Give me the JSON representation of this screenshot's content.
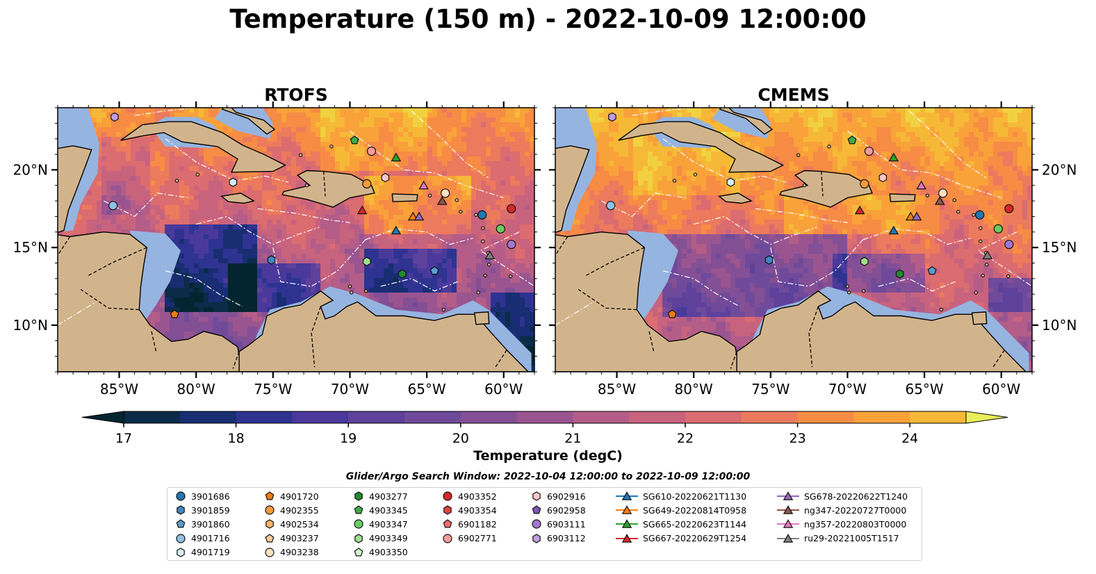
{
  "title": "Temperature (150 m) - 2022-10-09 12:00:00",
  "colorbar": {
    "label": "Temperature (degC)",
    "ticks": [
      17,
      18,
      19,
      20,
      21,
      22,
      23,
      24
    ],
    "min": 16.75,
    "max": 24.75,
    "step": 0.5,
    "extend": "both",
    "colors": [
      "#03252f",
      "#0b2b49",
      "#182d72",
      "#2e3391",
      "#4a399b",
      "#5d419b",
      "#6f4a9a",
      "#834f95",
      "#9a5590",
      "#b35d88",
      "#c8637e",
      "#db6c70",
      "#ec7a5d",
      "#f78c45",
      "#f9a23a",
      "#f6b937",
      "#f2d140",
      "#e8ef58"
    ],
    "extend_low_color": "#03252f",
    "extend_high_color": "#e8ef58"
  },
  "chart_data": [
    {
      "type": "heatmap",
      "title": "RTOFS",
      "xlim": [
        -89,
        -58
      ],
      "ylim": [
        7,
        24
      ],
      "xticks": [
        -85,
        -80,
        -75,
        -70,
        -65,
        -60
      ],
      "yticks": [
        10,
        15,
        20
      ],
      "xtick_labels": [
        "85°W",
        "80°W",
        "75°W",
        "70°W",
        "65°W",
        "60°W"
      ],
      "ytick_labels": [
        "10°N",
        "15°N",
        "20°N"
      ],
      "ytick_side": "left",
      "field": "colder"
    },
    {
      "type": "heatmap",
      "title": "CMEMS",
      "xlim": [
        -89,
        -58
      ],
      "ylim": [
        7,
        24
      ],
      "xticks": [
        -85,
        -80,
        -75,
        -70,
        -65,
        -60
      ],
      "yticks": [
        10,
        15,
        20
      ],
      "xtick_labels": [
        "85°W",
        "80°W",
        "75°W",
        "70°W",
        "65°W",
        "60°W"
      ],
      "ytick_labels": [
        "10°N",
        "15°N",
        "20°N"
      ],
      "ytick_side": "right",
      "field": "warmer"
    }
  ],
  "legend": {
    "title": "Glider/Argo Search Window: 2022-10-04 12:00:00 to 2022-10-09 12:00:00",
    "columns": [
      [
        {
          "label": "3901686",
          "marker": "circle",
          "color": "#1f77b4"
        },
        {
          "label": "3901859",
          "marker": "hexagon",
          "color": "#3f86bf"
        },
        {
          "label": "3901860",
          "marker": "pentagon",
          "color": "#5a9bd0"
        },
        {
          "label": "4901716",
          "marker": "circle",
          "color": "#8ec1e6"
        },
        {
          "label": "4901719",
          "marker": "hexagon",
          "color": "#d6ebf7"
        }
      ],
      [
        {
          "label": "4901720",
          "marker": "pentagon",
          "color": "#f07c10"
        },
        {
          "label": "4902355",
          "marker": "circle",
          "color": "#fd9a3c"
        },
        {
          "label": "4902534",
          "marker": "hexagon",
          "color": "#fcb46b"
        },
        {
          "label": "4903237",
          "marker": "pentagon",
          "color": "#fdcb97"
        },
        {
          "label": "4903238",
          "marker": "circle",
          "color": "#fee1c1"
        }
      ],
      [
        {
          "label": "4903277",
          "marker": "hexagon",
          "color": "#238b2f"
        },
        {
          "label": "4903345",
          "marker": "pentagon",
          "color": "#3fab4a"
        },
        {
          "label": "4903347",
          "marker": "circle",
          "color": "#6acb65"
        },
        {
          "label": "4903349",
          "marker": "hexagon",
          "color": "#9fdf8e"
        },
        {
          "label": "4903350",
          "marker": "pentagon",
          "color": "#d2f4c7"
        }
      ],
      [
        {
          "label": "4903352",
          "marker": "circle",
          "color": "#d62728"
        },
        {
          "label": "4903354",
          "marker": "hexagon",
          "color": "#e04343"
        },
        {
          "label": "6901182",
          "marker": "pentagon",
          "color": "#ee6e6e"
        },
        {
          "label": "6902771",
          "marker": "circle",
          "color": "#f79a9a"
        }
      ],
      [
        {
          "label": "6902916",
          "marker": "hexagon",
          "color": "#fbc7c7"
        },
        {
          "label": "6902958",
          "marker": "pentagon",
          "color": "#8154b6"
        },
        {
          "label": "6903111",
          "marker": "circle",
          "color": "#a277cf"
        },
        {
          "label": "6903112",
          "marker": "hexagon",
          "color": "#c09ce3"
        }
      ],
      [
        {
          "label": "SG610-20220621T1130",
          "marker": "triangle",
          "color": "#1f77b4",
          "line": true
        },
        {
          "label": "SG649-20220814T0958",
          "marker": "triangle",
          "color": "#ff7f0e",
          "line": true
        },
        {
          "label": "SG665-20220623T1144",
          "marker": "triangle",
          "color": "#2ca02c",
          "line": true
        },
        {
          "label": "SG667-20220629T1254",
          "marker": "triangle",
          "color": "#d62728",
          "line": true
        }
      ],
      [
        {
          "label": "SG678-20220622T1240",
          "marker": "triangle",
          "color": "#9467bd",
          "line": true
        },
        {
          "label": "ng347-20220727T0000",
          "marker": "triangle",
          "color": "#8c564b",
          "line": true
        },
        {
          "label": "ng357-20220803T0000",
          "marker": "triangle",
          "color": "#e377c2",
          "line": true
        },
        {
          "label": "ru29-20221005T1517",
          "marker": "triangle",
          "color": "#7f7f7f",
          "line": true
        }
      ]
    ]
  },
  "stations": [
    {
      "label": "6903112",
      "lon": -85.3,
      "lat": 23.4
    },
    {
      "label": "4903345",
      "lon": -69.7,
      "lat": 21.9
    },
    {
      "label": "6902771",
      "lon": -68.6,
      "lat": 21.2
    },
    {
      "label": "SG665-20220623T1144",
      "lon": -67.0,
      "lat": 20.8
    },
    {
      "label": "4901719",
      "lon": -77.6,
      "lat": 19.2
    },
    {
      "label": "6902916",
      "lon": -67.7,
      "lat": 19.5
    },
    {
      "label": "4902355",
      "lon": -68.9,
      "lat": 19.1
    },
    {
      "label": "ng357-20220803T0000",
      "lon": -65.2,
      "lat": 19.0
    },
    {
      "label": "4903238",
      "lon": -63.8,
      "lat": 18.5
    },
    {
      "label": "ng347-20220727T0000",
      "lon": -64.0,
      "lat": 18.0
    },
    {
      "label": "4901716",
      "lon": -85.4,
      "lat": 17.7
    },
    {
      "label": "SG667-20220629T1254",
      "lon": -69.2,
      "lat": 17.4
    },
    {
      "label": "SG649-20220814T0958",
      "lon": -65.9,
      "lat": 17.0
    },
    {
      "label": "SG678-20220622T1240",
      "lon": -65.5,
      "lat": 17.0
    },
    {
      "label": "3901686",
      "lon": -61.4,
      "lat": 17.1
    },
    {
      "label": "4903352",
      "lon": -59.5,
      "lat": 17.5
    },
    {
      "label": "SG610-20220621T1130",
      "lon": -67.0,
      "lat": 16.1
    },
    {
      "label": "4903347",
      "lon": -60.2,
      "lat": 16.2
    },
    {
      "label": "6903111",
      "lon": -59.5,
      "lat": 15.2
    },
    {
      "label": "ru29-20221005T1517",
      "lon": -60.9,
      "lat": 14.5
    },
    {
      "label": "3901859",
      "lon": -75.1,
      "lat": 14.2
    },
    {
      "label": "4903349",
      "lon": -68.9,
      "lat": 14.1
    },
    {
      "label": "3901860",
      "lon": -64.5,
      "lat": 13.5
    },
    {
      "label": "4903277",
      "lon": -66.6,
      "lat": 13.3
    },
    {
      "label": "4901720",
      "lon": -81.4,
      "lat": 10.7
    }
  ]
}
